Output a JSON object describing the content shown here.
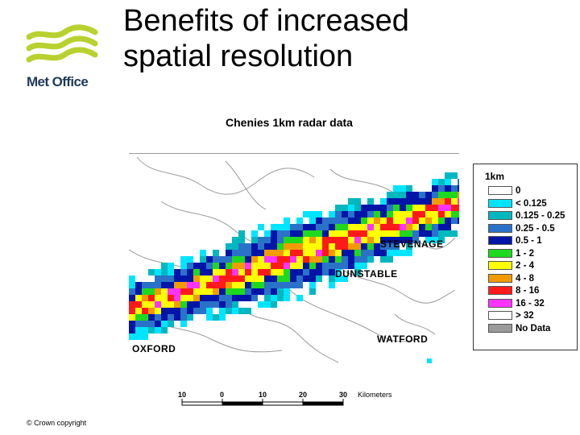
{
  "brand": {
    "logo_text": "Met Office",
    "logo_color": "#b9d12f",
    "text_color": "#1d3a5c"
  },
  "slide": {
    "title_line1": "Benefits of increased",
    "title_line2": "spatial resolution"
  },
  "map": {
    "title": "Chenies 1km radar data",
    "places": [
      "STEVENAGE",
      "DUNSTABLE",
      "OXFORD",
      "WATFORD"
    ]
  },
  "legend": {
    "title": "1km",
    "items": [
      {
        "label": "0",
        "color": "#ffffff"
      },
      {
        "label": "< 0.125",
        "color": "#00e5ff"
      },
      {
        "label": "0.125 - 0.25",
        "color": "#00b8c0"
      },
      {
        "label": "0.25 - 0.5",
        "color": "#2a72c8"
      },
      {
        "label": "0.5 - 1",
        "color": "#0015a8"
      },
      {
        "label": "1 - 2",
        "color": "#1ed91e"
      },
      {
        "label": "2 - 4",
        "color": "#ffff00"
      },
      {
        "label": "4 - 8",
        "color": "#f29b00"
      },
      {
        "label": "8 - 16",
        "color": "#ff1a1a"
      },
      {
        "label": "16 - 32",
        "color": "#ff33ff"
      },
      {
        "label": "> 32",
        "color": "#ffffff"
      },
      {
        "label": "No Data",
        "color": "#9a9a9a"
      }
    ]
  },
  "scale": {
    "ticks": [
      "10",
      "0",
      "10",
      "20",
      "30"
    ],
    "unit": "Kilometers"
  },
  "footer": {
    "copyright": "© Crown copyright"
  }
}
